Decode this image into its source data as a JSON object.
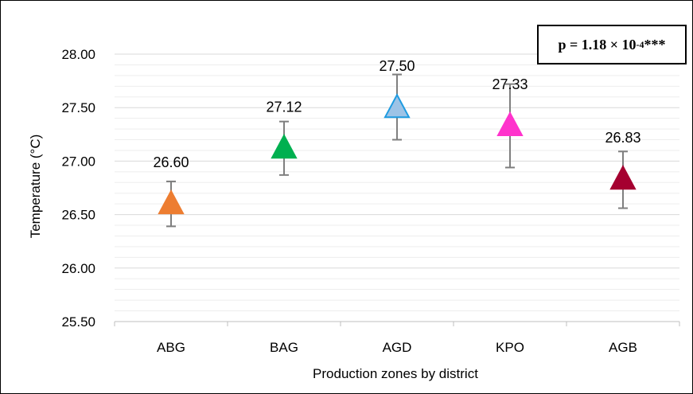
{
  "chart_data": {
    "type": "scatter",
    "xlabel": "Production zones by district",
    "ylabel": "Temperature (°C)",
    "ylim": [
      25.5,
      28.0
    ],
    "yticks": [
      "25.50",
      "26.00",
      "26.50",
      "27.00",
      "27.50",
      "28.00"
    ],
    "categories": [
      "ABG",
      "BAG",
      "AGD",
      "KPO",
      "AGB"
    ],
    "values": [
      26.6,
      27.12,
      27.5,
      27.33,
      26.83
    ],
    "value_labels": [
      "26.60",
      "27.12",
      "27.50",
      "27.33",
      "26.83"
    ],
    "error_low": [
      26.39,
      26.87,
      27.2,
      26.94,
      26.56
    ],
    "error_high": [
      26.81,
      27.37,
      27.81,
      27.72,
      27.09
    ],
    "marker_colors": [
      "#ED7D31",
      "#00B050",
      "#9DC3E6",
      "#FF33CC",
      "#A50030"
    ],
    "marker_edge_colors": [
      "#ED7D31",
      "#00B050",
      "#1F9BE0",
      "#FF33CC",
      "#A50030"
    ],
    "grid": true,
    "annotation": {
      "prefix": "p = 1.18 × 10",
      "exponent": "-4",
      "suffix": "***"
    }
  }
}
